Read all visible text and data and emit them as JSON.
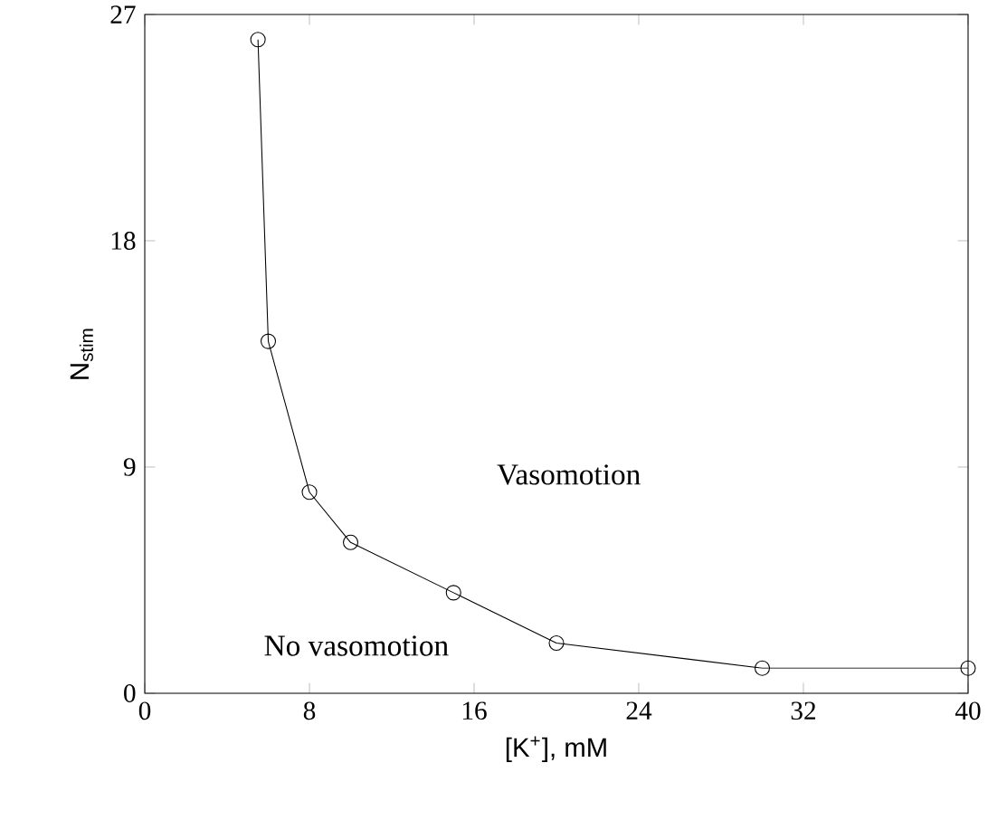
{
  "chart_data": {
    "type": "line",
    "xlabel": "[K$^{+}$], mM",
    "ylabel": "N$_{stim}$",
    "x": [
      5.5,
      6,
      8,
      10,
      15,
      20,
      30,
      40
    ],
    "values": [
      26,
      14,
      8,
      6,
      4,
      2,
      1,
      1
    ],
    "color": "#000000",
    "marker": "circle",
    "line_style": "solid",
    "xlim": [
      0,
      40
    ],
    "ylim": [
      0,
      27
    ],
    "xticks": [
      0,
      8,
      16,
      24,
      32,
      40
    ],
    "yticks": [
      0,
      9,
      18,
      27
    ],
    "annotations": [
      "Vasomotion",
      "No vasomotion"
    ]
  }
}
